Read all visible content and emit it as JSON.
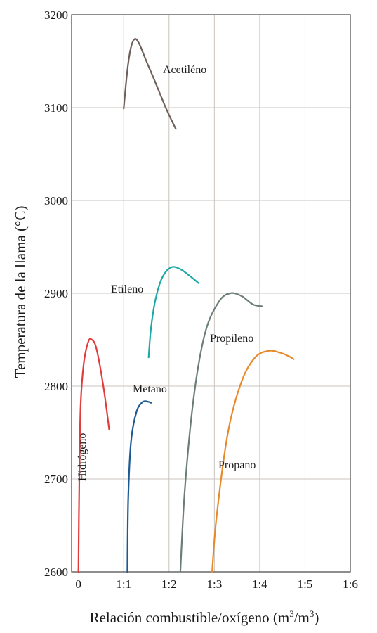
{
  "chart_data": {
    "type": "line",
    "xlabel": "Relación combustible/oxígeno (m",
    "xlabel_sup1": "3",
    "xlabel_mid": "/m",
    "xlabel_sup2": "3",
    "xlabel_end": ")",
    "ylabel": "Temperatura de la llama (°C)",
    "x_ticks": [
      {
        "value": 0,
        "label": "0"
      },
      {
        "value": 1,
        "label": "1:1"
      },
      {
        "value": 2,
        "label": "1:2"
      },
      {
        "value": 3,
        "label": "1:3"
      },
      {
        "value": 4,
        "label": "1:4"
      },
      {
        "value": 5,
        "label": "1:5"
      },
      {
        "value": 6,
        "label": "1:6"
      }
    ],
    "y_ticks": [
      2600,
      2700,
      2800,
      2900,
      3000,
      3100,
      3200
    ],
    "xlim": [
      -0.15,
      6.0
    ],
    "ylim": [
      2600,
      3200
    ],
    "grid": true,
    "series": [
      {
        "name": "Acetiléno",
        "color": "#6e5f5a",
        "points": [
          [
            1.0,
            3099
          ],
          [
            1.08,
            3140
          ],
          [
            1.16,
            3165
          ],
          [
            1.25,
            3174
          ],
          [
            1.35,
            3168
          ],
          [
            1.5,
            3150
          ],
          [
            1.7,
            3127
          ],
          [
            1.9,
            3103
          ],
          [
            2.05,
            3087
          ],
          [
            2.15,
            3077
          ]
        ]
      },
      {
        "name": "Etileno",
        "color": "#1aa9a5",
        "points": [
          [
            1.55,
            2831
          ],
          [
            1.6,
            2862
          ],
          [
            1.7,
            2893
          ],
          [
            1.85,
            2917
          ],
          [
            2.05,
            2928
          ],
          [
            2.25,
            2926
          ],
          [
            2.45,
            2919
          ],
          [
            2.65,
            2911
          ]
        ]
      },
      {
        "name": "Hidrógeno",
        "color": "#e23b3b",
        "points": [
          [
            0.0,
            2600
          ],
          [
            0.02,
            2700
          ],
          [
            0.05,
            2780
          ],
          [
            0.12,
            2825
          ],
          [
            0.22,
            2848
          ],
          [
            0.3,
            2850
          ],
          [
            0.4,
            2840
          ],
          [
            0.55,
            2800
          ],
          [
            0.68,
            2753
          ]
        ]
      },
      {
        "name": "Metano",
        "color": "#1d5a93",
        "points": [
          [
            1.08,
            2600
          ],
          [
            1.1,
            2680
          ],
          [
            1.16,
            2740
          ],
          [
            1.28,
            2772
          ],
          [
            1.42,
            2783
          ],
          [
            1.55,
            2783
          ],
          [
            1.6,
            2782
          ]
        ]
      },
      {
        "name": "Propileno",
        "color": "#6a7e76",
        "points": [
          [
            2.25,
            2600
          ],
          [
            2.35,
            2690
          ],
          [
            2.55,
            2790
          ],
          [
            2.8,
            2858
          ],
          [
            3.1,
            2891
          ],
          [
            3.35,
            2900
          ],
          [
            3.6,
            2897
          ],
          [
            3.85,
            2888
          ],
          [
            4.05,
            2886
          ]
        ]
      },
      {
        "name": "Propano",
        "color": "#e88a2a",
        "points": [
          [
            2.95,
            2600
          ],
          [
            3.05,
            2660
          ],
          [
            3.3,
            2750
          ],
          [
            3.6,
            2805
          ],
          [
            3.9,
            2831
          ],
          [
            4.2,
            2838
          ],
          [
            4.45,
            2836
          ],
          [
            4.65,
            2832
          ],
          [
            4.75,
            2829
          ]
        ]
      }
    ]
  }
}
